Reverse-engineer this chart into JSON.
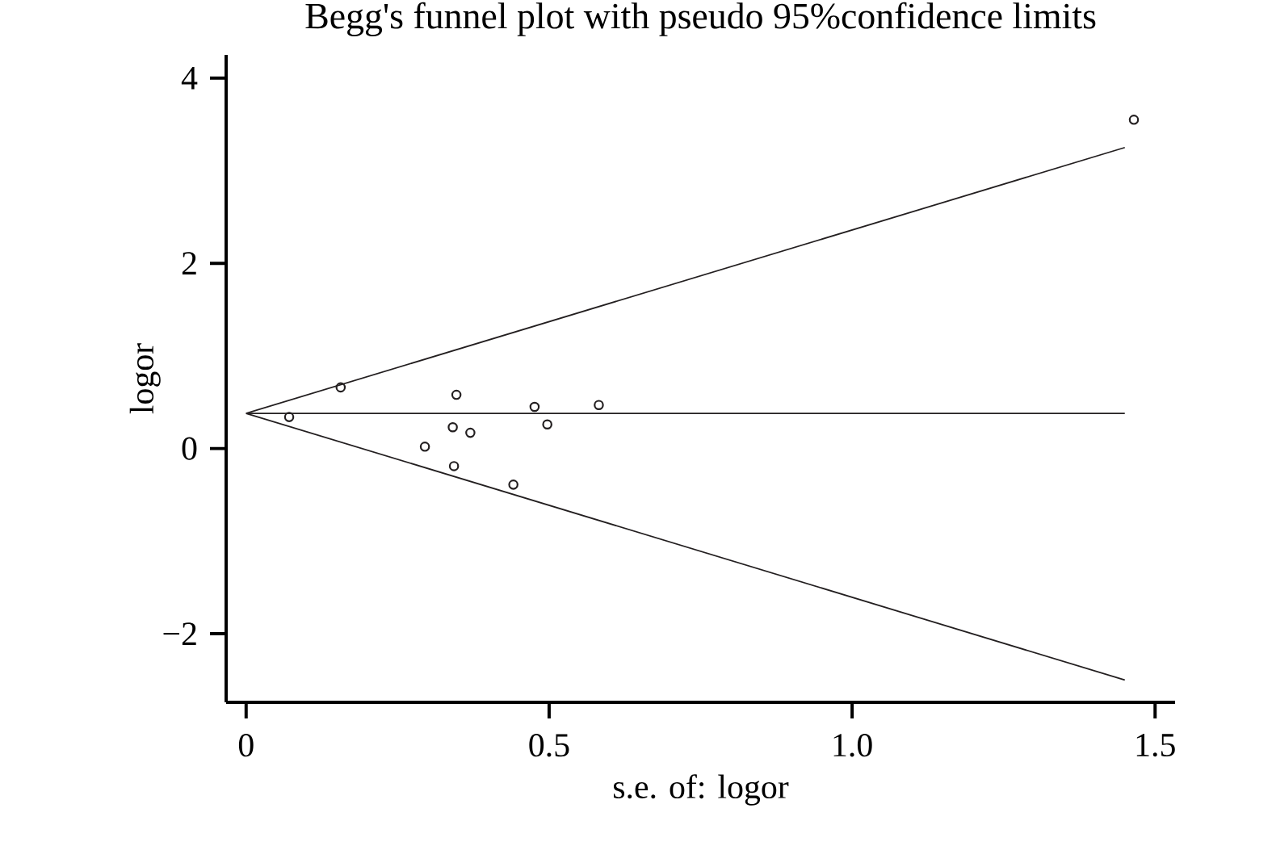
{
  "chart_data": {
    "type": "scatter",
    "title": "Begg's funnel plot with pseudo 95%confidence limits",
    "xlabel": "s.e. of: logor",
    "ylabel": "logor",
    "xlim": [
      -0.033,
      1.533
    ],
    "ylim": [
      -2.74,
      4.25
    ],
    "xticks": [
      0,
      0.5,
      {
        "value": 1,
        "label": "1.0"
      },
      1.5
    ],
    "yticks": [
      {
        "value": -2,
        "label": "−2"
      },
      0,
      2,
      4
    ],
    "series": [
      {
        "color": "#231f20",
        "marker": "circle",
        "x": [
          0.071,
          0.156,
          0.347,
          0.341,
          0.37,
          0.295,
          0.343,
          0.441,
          0.476,
          0.497,
          0.582,
          1.465
        ],
        "values": [
          0.34,
          0.66,
          0.58,
          0.23,
          0.17,
          0.02,
          -0.19,
          -0.39,
          0.45,
          0.26,
          0.47,
          3.55
        ]
      },
      {
        "type": "line",
        "color": "#231f20",
        "marker": "none",
        "x": [
          0,
          1.45
        ],
        "values": [
          0.38,
          0.38
        ]
      },
      {
        "type": "line",
        "color": "#231f20",
        "marker": "none",
        "x": [
          0,
          1.45
        ],
        "values": [
          0.38,
          3.25
        ]
      },
      {
        "type": "line",
        "color": "#231f20",
        "marker": "none",
        "x": [
          0,
          1.45
        ],
        "values": [
          0.38,
          -2.5
        ]
      }
    ]
  }
}
